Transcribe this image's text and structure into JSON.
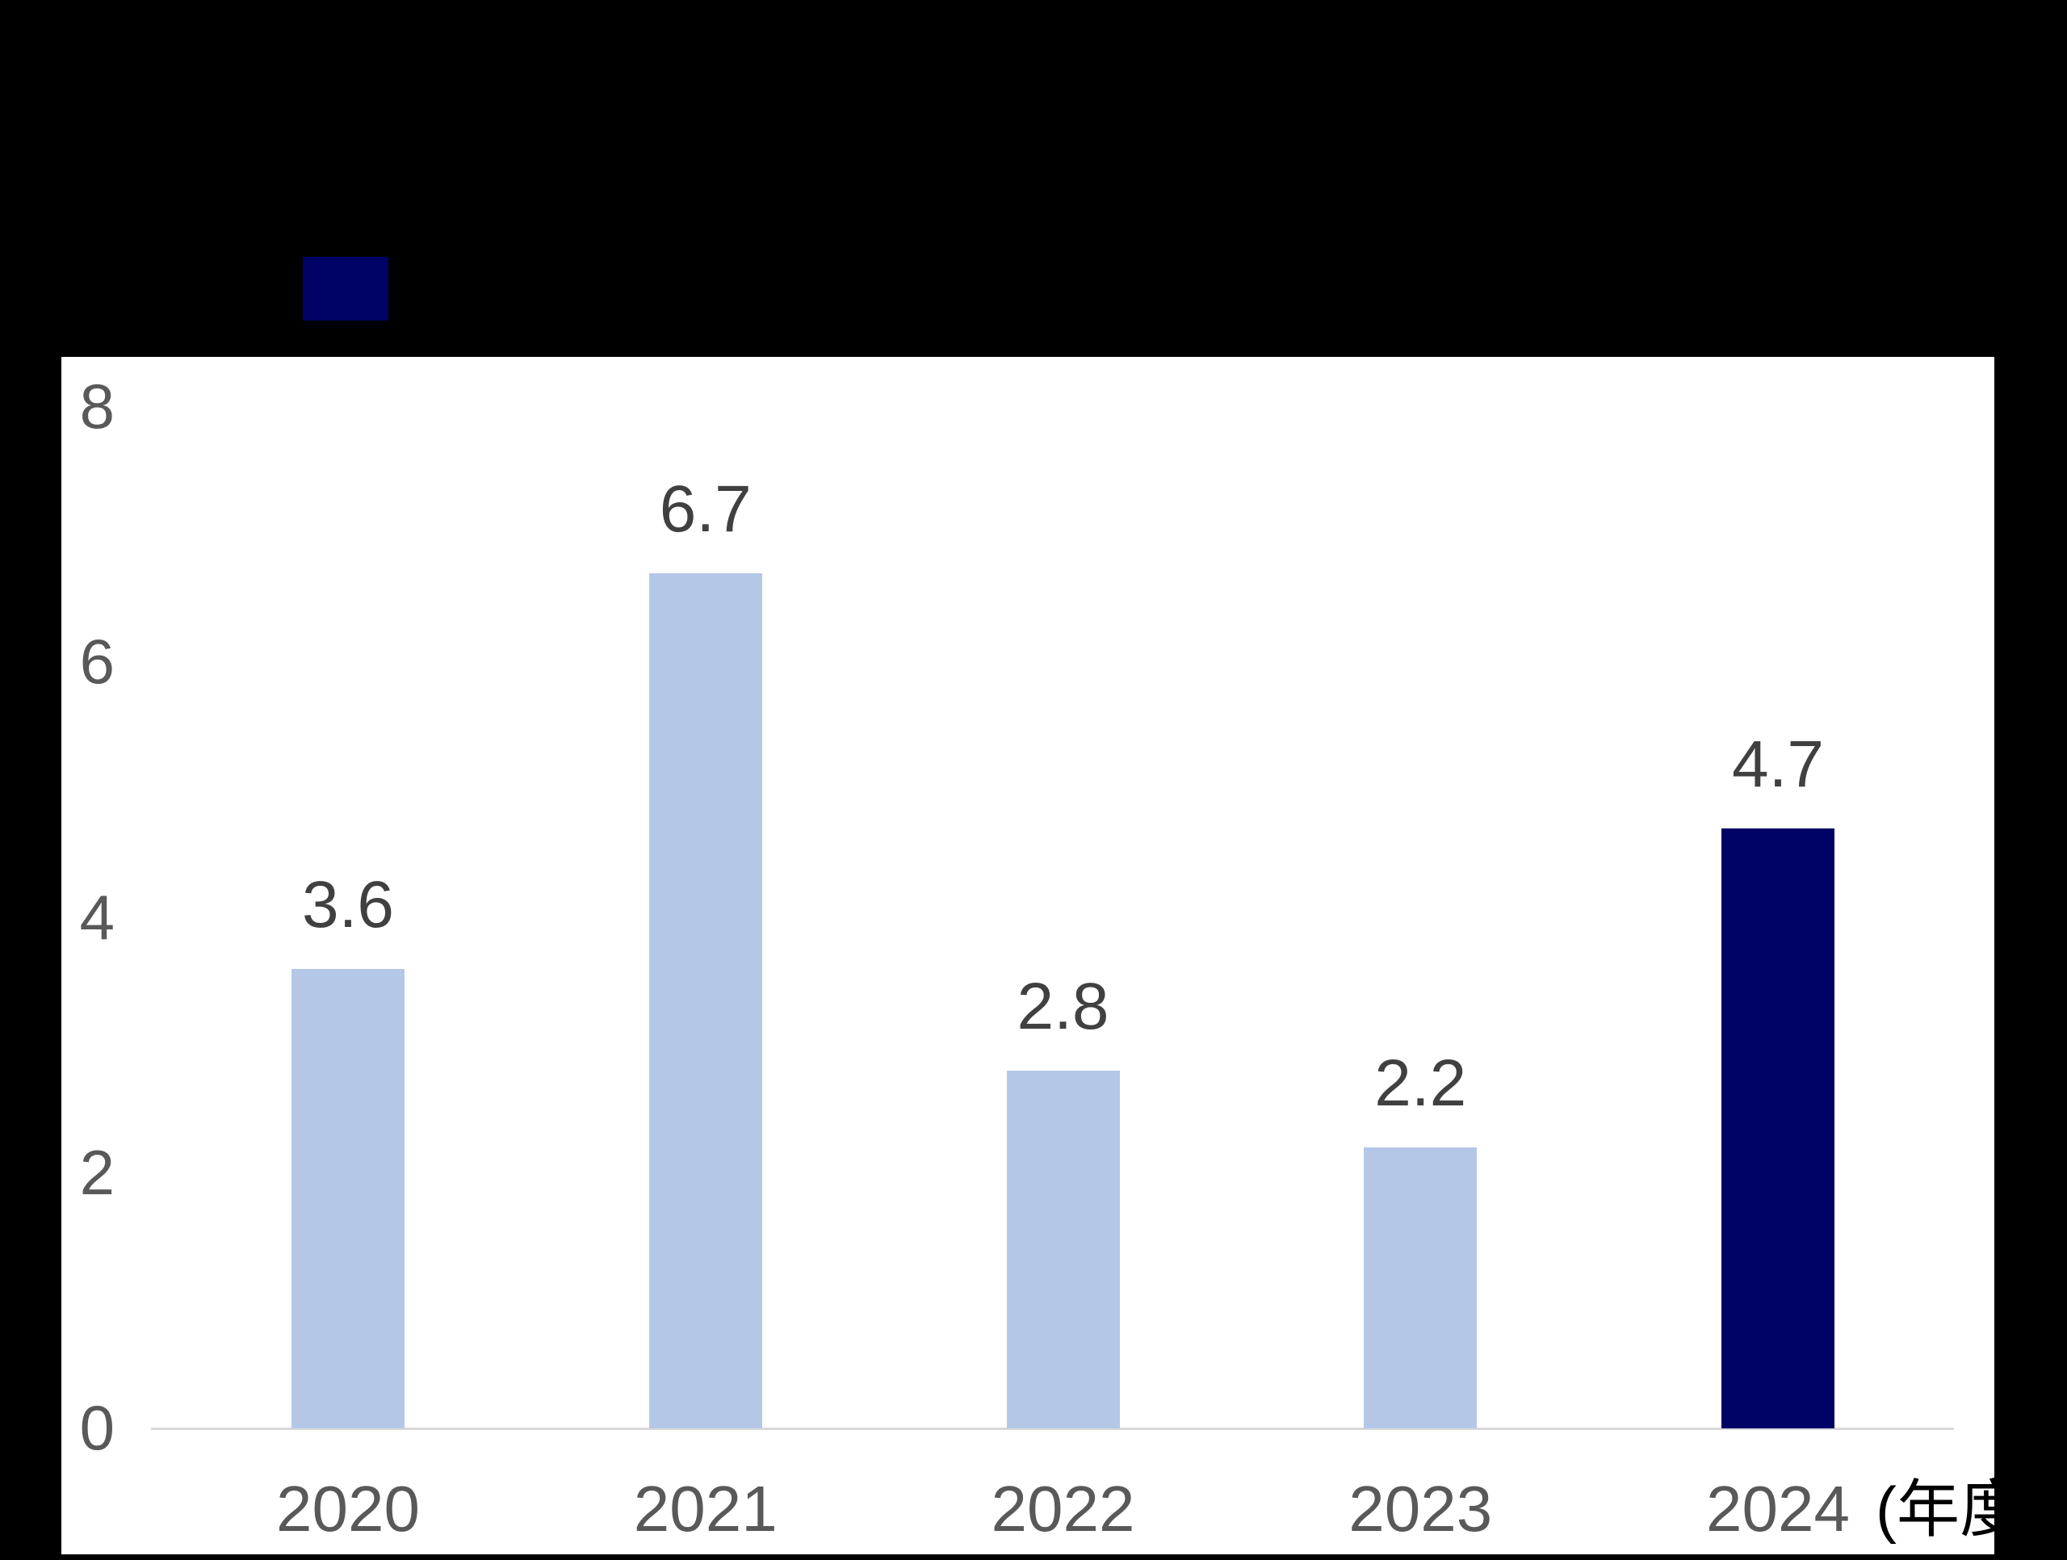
{
  "page": {
    "background_color": "#000000",
    "panel_color": "#ffffff"
  },
  "legend": {
    "position": "top-left",
    "swatch_color": "#000266"
  },
  "chart_data": {
    "type": "bar",
    "title": "",
    "categories": [
      "2020",
      "2021",
      "2022",
      "2023",
      "2024"
    ],
    "values": [
      3.6,
      6.7,
      2.8,
      2.2,
      4.7
    ],
    "value_labels": [
      "3.6",
      "6.7",
      "2.8",
      "2.2",
      "4.7"
    ],
    "bar_colors": [
      "#b4c7e7",
      "#b4c7e7",
      "#b4c7e7",
      "#b4c7e7",
      "#000266"
    ],
    "xlabel": "",
    "ylabel": "",
    "x_unit_label": "(年度",
    "ylim": [
      0,
      8
    ],
    "y_ticks": [
      "8",
      "6",
      "4",
      "2",
      "0"
    ],
    "y_tick_values": [
      8,
      6,
      4,
      2,
      0
    ],
    "grid": "off",
    "legend_position": "top-left"
  },
  "style": {
    "axis_line_color": "#d9d9d9",
    "y_tick_color": "#595959",
    "x_tick_color": "#595959",
    "value_label_color": "#404040",
    "unit_label_color": "#000000"
  }
}
